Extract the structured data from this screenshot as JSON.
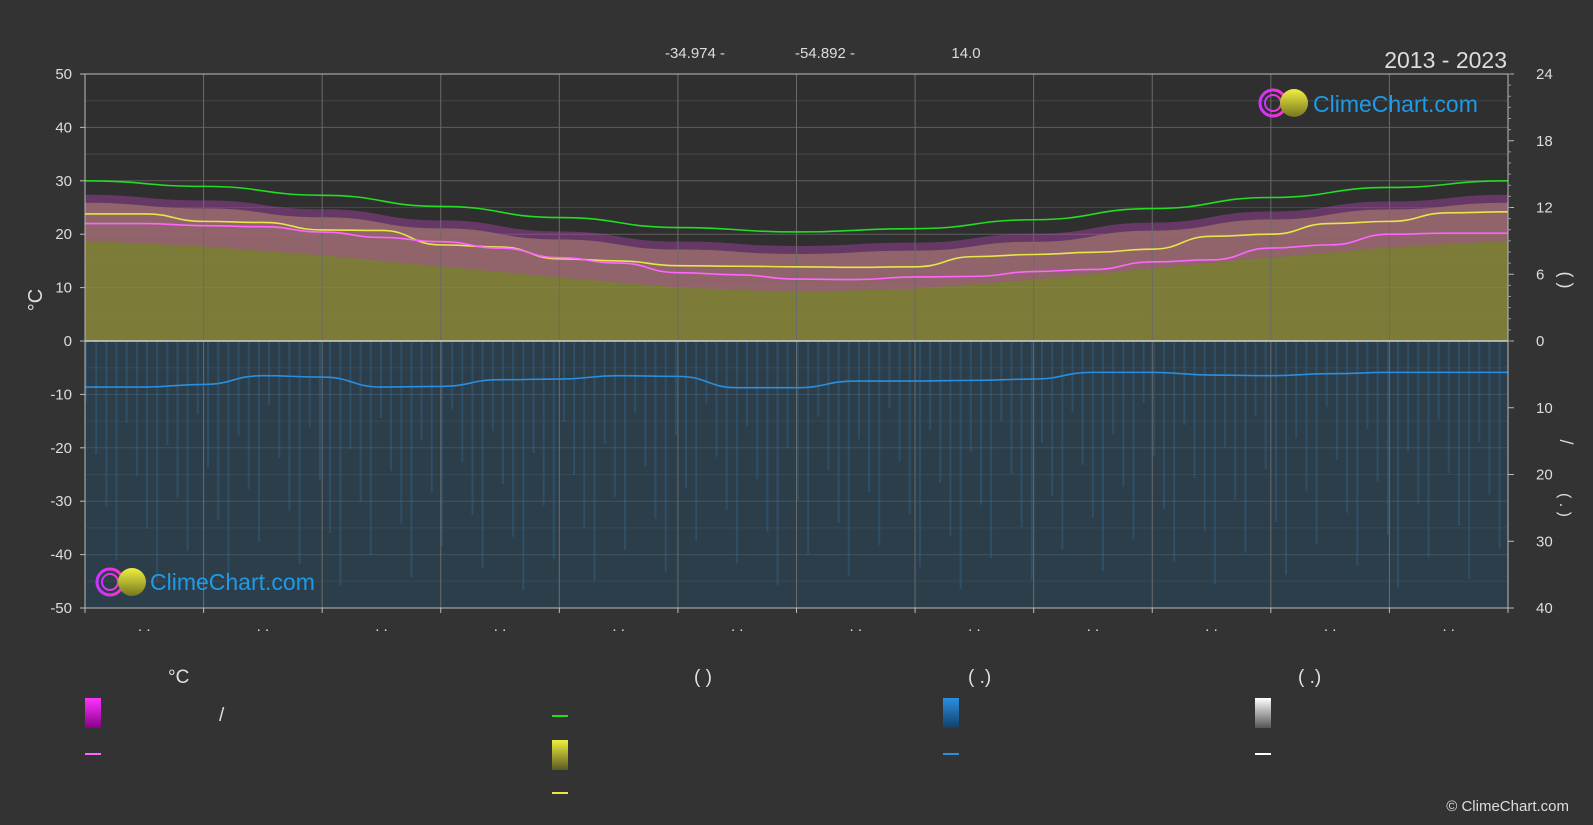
{
  "header": {
    "lat": "-34.974 -",
    "lon": "-54.892 -",
    "elev": "14.0",
    "years": "2013 - 2023"
  },
  "branding": {
    "logo_text": "ClimeChart.com",
    "copyright": "© ClimeChart.com"
  },
  "colors": {
    "background": "#333333",
    "daylight": "#22dd22",
    "sunshine": "#e6e64a",
    "temp_mean": "#ff66ff",
    "precip": "#2a8fe0",
    "snow": "#ffffff",
    "logo": "#1e9be8"
  },
  "chart_data": {
    "type": "area",
    "x_count_ticks": 12,
    "month_labels": [
      ". .",
      ". .",
      ". .",
      ". .",
      ". .",
      ". .",
      ". .",
      ". .",
      ". .",
      ". .",
      ". .",
      ". ."
    ],
    "left_axis": {
      "label": "°C",
      "ticks": [
        50,
        40,
        30,
        20,
        10,
        0,
        -10,
        -20,
        -30,
        -40,
        -50
      ],
      "range": [
        -50,
        50
      ]
    },
    "right_axis_upper": {
      "ticks": [
        24,
        18,
        12,
        6,
        0
      ],
      "range": [
        0,
        24
      ],
      "label": "(  )"
    },
    "right_axis_lower": {
      "ticks": [
        0,
        10,
        20,
        30,
        40
      ],
      "range": [
        0,
        40
      ],
      "label": "/"
    },
    "right_label_upper_text": "(   )",
    "right_label_lower_slash": "/",
    "right_label_lower_paren": "(   .   )",
    "grid": true,
    "series": [
      {
        "name": "daylight",
        "axis": "hours",
        "x": [
          0,
          1,
          2,
          3,
          4,
          5,
          6,
          7,
          8,
          9,
          10,
          11,
          12
        ],
        "values": [
          14.4,
          13.9,
          13.1,
          12.1,
          11.1,
          10.2,
          9.8,
          10.1,
          10.9,
          11.9,
          12.9,
          13.8,
          14.4
        ]
      },
      {
        "name": "sunshine",
        "axis": "temp",
        "x": [
          0,
          0.5,
          1,
          1.5,
          2,
          2.5,
          3,
          3.5,
          4,
          4.5,
          5,
          5.5,
          6,
          6.5,
          7,
          7.5,
          8,
          8.5,
          9,
          9.5,
          10,
          10.5,
          11,
          11.5,
          12
        ],
        "values": [
          23.8,
          23.8,
          22.4,
          22.2,
          20.8,
          20.7,
          18.0,
          17.6,
          15.4,
          15.0,
          14.1,
          14.0,
          13.9,
          13.8,
          13.9,
          15.8,
          16.2,
          16.6,
          17.2,
          19.6,
          20.0,
          22.0,
          22.4,
          24.0,
          24.2
        ]
      },
      {
        "name": "temp_mean",
        "axis": "temp",
        "x": [
          0,
          0.5,
          1,
          1.5,
          2,
          2.5,
          3,
          3.5,
          4,
          4.5,
          5,
          5.5,
          6,
          6.5,
          7,
          7.5,
          8,
          8.5,
          9,
          9.5,
          10,
          10.5,
          11,
          11.5,
          12
        ],
        "values": [
          22.0,
          22.0,
          21.6,
          21.4,
          20.4,
          19.4,
          18.6,
          17.4,
          15.6,
          14.6,
          12.8,
          12.4,
          11.6,
          11.5,
          12.0,
          12.1,
          13.0,
          13.4,
          14.8,
          15.2,
          17.4,
          18.0,
          20.0,
          20.2,
          20.2
        ]
      },
      {
        "name": "precip",
        "axis": "precip",
        "x": [
          0,
          0.5,
          1,
          1.5,
          2,
          2.5,
          3,
          3.5,
          4,
          4.5,
          5,
          5.5,
          6,
          6.5,
          7,
          7.5,
          8,
          8.5,
          9,
          9.5,
          10,
          10.5,
          11,
          11.5,
          12
        ],
        "values": [
          6.9,
          6.9,
          6.5,
          5.2,
          5.4,
          6.9,
          6.8,
          5.8,
          5.7,
          5.2,
          5.3,
          7.0,
          7.0,
          6.0,
          6.0,
          5.9,
          5.7,
          4.7,
          4.7,
          5.1,
          5.2,
          4.9,
          4.7,
          4.7,
          4.7
        ]
      }
    ]
  },
  "legend": {
    "col1": {
      "heading": "°C",
      "row1_sep": "/"
    },
    "col2": {
      "heading": "(          )"
    },
    "col3": {
      "heading": "(   .)"
    },
    "col4": {
      "heading": "(   .)"
    }
  }
}
